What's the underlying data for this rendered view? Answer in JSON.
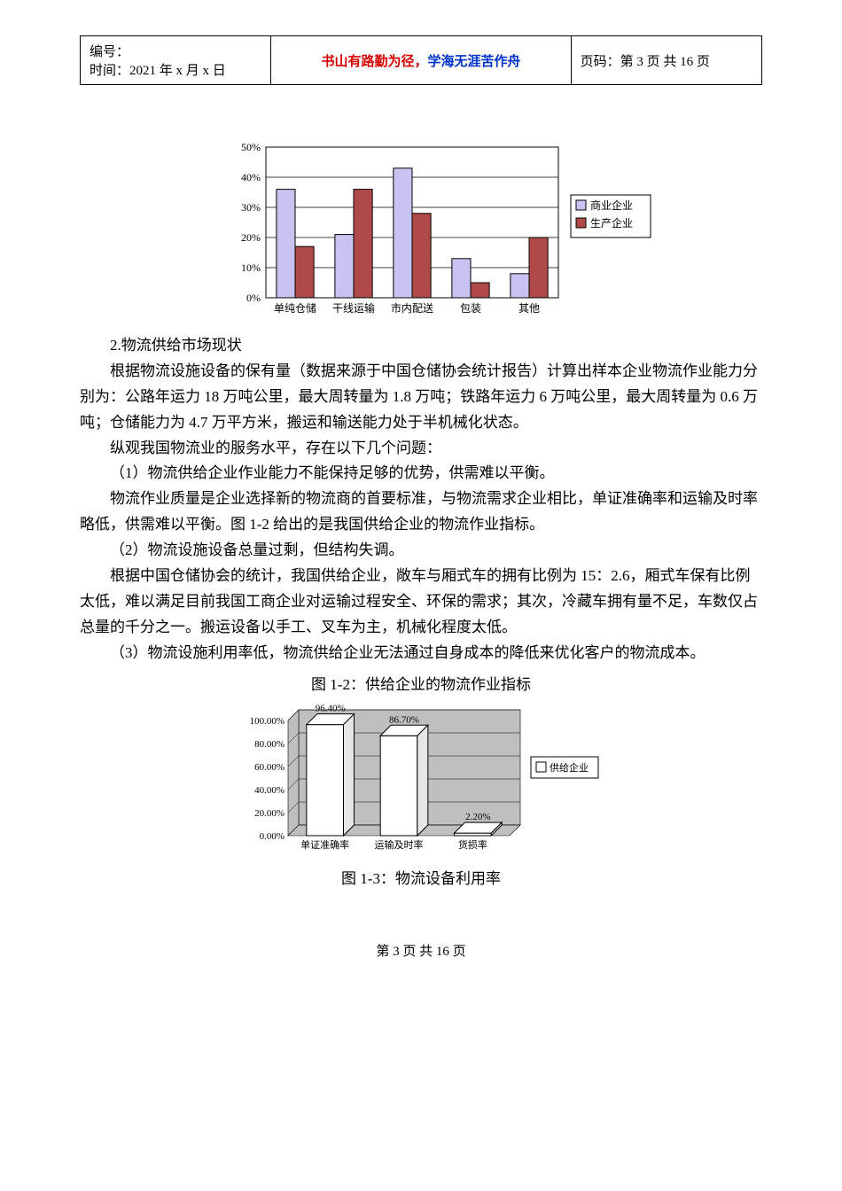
{
  "header": {
    "id_label": "编号：",
    "date_label": "时间：2021 年 x 月 x 日",
    "motto_red": "书山有路勤为径，",
    "motto_blue": "学海无涯苦作舟",
    "page_label": "页码：第 3 页 共 16 页"
  },
  "chart1": {
    "type": "bar",
    "categories": [
      "单纯仓储",
      "干线运输",
      "市内配送",
      "包装",
      "其他"
    ],
    "series": [
      {
        "name": "商业企业",
        "color": "#c9c3f2",
        "border": "#000000",
        "values": [
          36,
          21,
          43,
          13,
          8
        ]
      },
      {
        "name": "生产企业",
        "color": "#b04a4a",
        "border": "#000000",
        "values": [
          17,
          36,
          28,
          5,
          20
        ]
      }
    ],
    "ylim": [
      0,
      50
    ],
    "ytick_step": 10,
    "y_format": "%",
    "grid_color": "#000000",
    "background_color": "#ffffff",
    "bar_width": 0.32,
    "label_fontsize": 12,
    "tick_fontsize": 12,
    "legend_position": "right",
    "legend_marker": "square"
  },
  "text": {
    "sec_title": "2.物流供给市场现状",
    "p1": "根据物流设施设备的保有量（数据来源于中国仓储协会统计报告）计算出样本企业物流作业能力分别为：公路年运力 18 万吨公里，最大周转量为 1.8 万吨；铁路年运力 6 万吨公里，最大周转量为 0.6 万吨；仓储能力为 4.7 万平方米，搬运和输送能力处于半机械化状态。",
    "p2": "纵观我国物流业的服务水平，存在以下几个问题：",
    "p3": "（1）物流供给企业作业能力不能保持足够的优势，供需难以平衡。",
    "p4": "物流作业质量是企业选择新的物流商的首要标准，与物流需求企业相比，单证准确率和运输及时率略低，供需难以平衡。图 1-2 给出的是我国供给企业的物流作业指标。",
    "p5": "（2）物流设施设备总量过剩，但结构失调。",
    "p6": "根据中国仓储协会的统计，我国供给企业，敞车与厢式车的拥有比例为 15：2.6，厢式车保有比例太低，难以满足目前我国工商企业对运输过程安全、环保的需求；其次，冷藏车拥有量不足，车数仅占总量的千分之一。搬运设备以手工、叉车为主，机械化程度太低。",
    "p7": "（3）物流设施利用率低，物流供给企业无法通过自身成本的降低来优化客户的物流成本。",
    "fig2_title": "图 1-2：供给企业的物流作业指标",
    "fig3_title": "图 1-3：物流设备利用率"
  },
  "chart2": {
    "type": "bar3d",
    "categories": [
      "单证准确率",
      "运输及时率",
      "货损率"
    ],
    "series_name": "供给企业",
    "values": [
      96.4,
      86.7,
      2.2
    ],
    "value_labels": [
      "96.40%",
      "86.70%",
      "2.20%"
    ],
    "bar_color": "#ffffff",
    "bar_border": "#000000",
    "floor_color": "#bfbfbf",
    "wall_color": "#bfbfbf",
    "ylim": [
      0,
      100
    ],
    "ytick_step": 20,
    "y_format": "0.00%",
    "label_fontsize": 11,
    "tick_fontsize": 11,
    "bar_width": 0.5,
    "depth": 12,
    "legend_position": "right"
  },
  "footer": {
    "text": "第 3 页 共 16 页"
  }
}
